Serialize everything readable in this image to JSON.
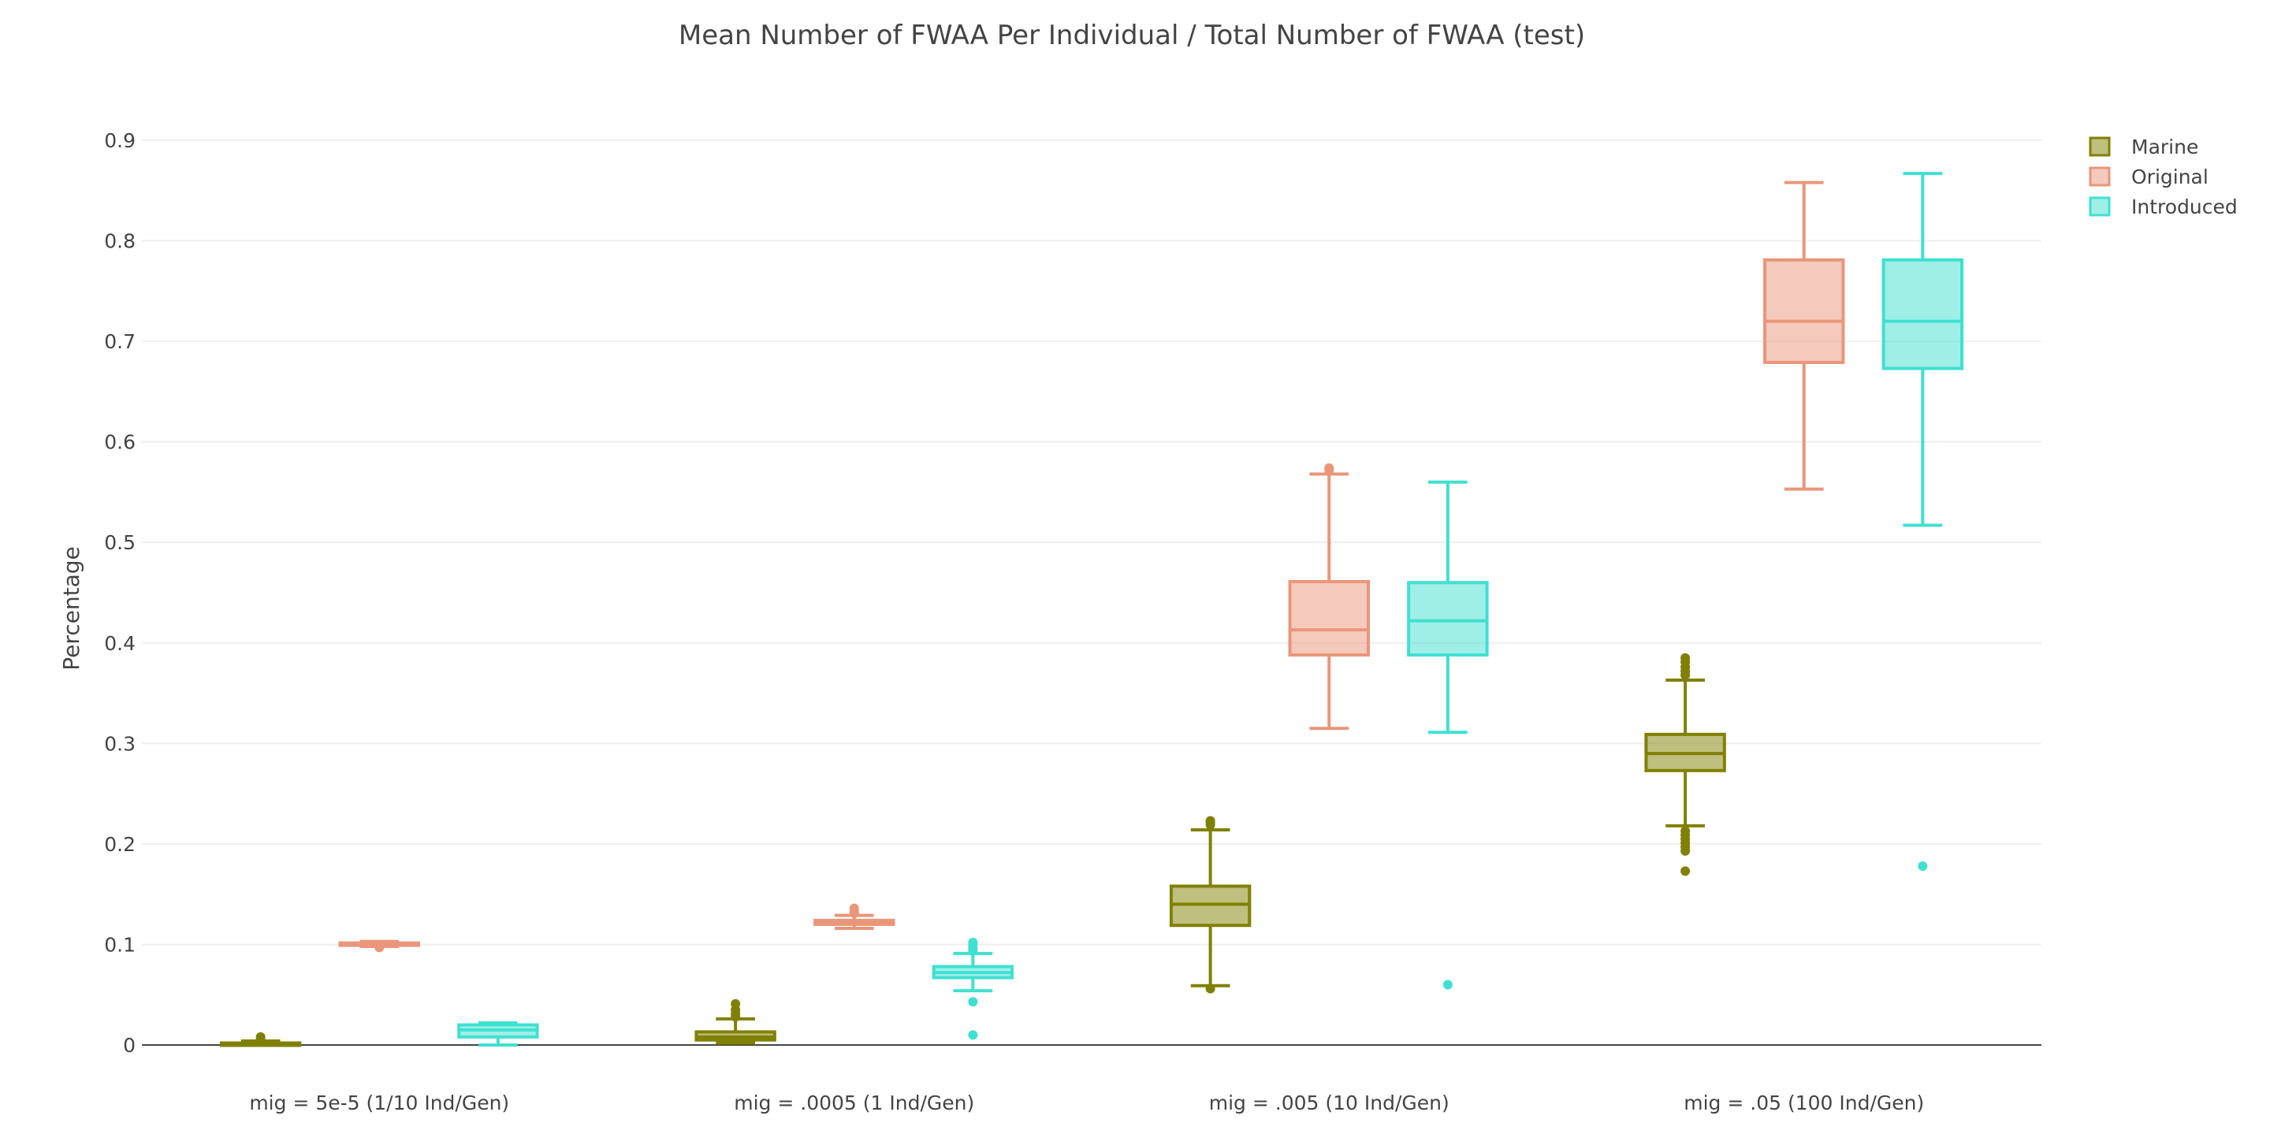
{
  "chart_data": {
    "type": "box",
    "title": "Mean Number of FWAA Per Individual / Total Number of FWAA (test)",
    "xlabel": "",
    "ylabel": "Percentage",
    "ylim": [
      0,
      0.9
    ],
    "yticks": [
      {
        "value": 0,
        "label": "0"
      },
      {
        "value": 0.1,
        "label": "0.1"
      },
      {
        "value": 0.2,
        "label": "0.2"
      },
      {
        "value": 0.3,
        "label": "0.3"
      },
      {
        "value": 0.4,
        "label": "0.4"
      },
      {
        "value": 0.5,
        "label": "0.5"
      },
      {
        "value": 0.6,
        "label": "0.6"
      },
      {
        "value": 0.7,
        "label": "0.7"
      },
      {
        "value": 0.8,
        "label": "0.8"
      },
      {
        "value": 0.9,
        "label": "0.9"
      }
    ],
    "grid": true,
    "legend_position": "top-right",
    "categories": [
      "mig = 5e-5 (1/10 Ind/Gen)",
      "mig = .0005 (1 Ind/Gen)",
      "mig = .005 (10 Ind/Gen)",
      "mig = .05 (100 Ind/Gen)"
    ],
    "series": [
      {
        "name": "Marine",
        "color": "#808000",
        "boxes": [
          {
            "lowerfence": 0.0,
            "q1": 0.0005,
            "median": 0.001,
            "q3": 0.002,
            "upperfence": 0.004,
            "outliers": [
              0.006,
              0.008
            ]
          },
          {
            "lowerfence": 0.002,
            "q1": 0.005,
            "median": 0.008,
            "q3": 0.013,
            "upperfence": 0.026,
            "outliers": [
              0.028,
              0.031,
              0.035,
              0.041
            ]
          },
          {
            "lowerfence": 0.059,
            "q1": 0.119,
            "median": 0.14,
            "q3": 0.158,
            "upperfence": 0.214,
            "outliers": [
              0.056,
              0.219,
              0.221,
              0.223
            ]
          },
          {
            "lowerfence": 0.218,
            "q1": 0.273,
            "median": 0.29,
            "q3": 0.309,
            "upperfence": 0.363,
            "outliers": [
              0.173,
              0.193,
              0.197,
              0.201,
              0.205,
              0.209,
              0.213,
              0.368,
              0.372,
              0.376,
              0.381,
              0.385
            ]
          }
        ]
      },
      {
        "name": "Original",
        "color": "#e9967a",
        "boxes": [
          {
            "lowerfence": 0.098,
            "q1": 0.0995,
            "median": 0.1005,
            "q3": 0.1015,
            "upperfence": 0.103,
            "outliers": [
              0.097
            ]
          },
          {
            "lowerfence": 0.116,
            "q1": 0.12,
            "median": 0.122,
            "q3": 0.124,
            "upperfence": 0.129,
            "outliers": [
              0.131,
              0.133,
              0.136
            ]
          },
          {
            "lowerfence": 0.315,
            "q1": 0.388,
            "median": 0.413,
            "q3": 0.461,
            "upperfence": 0.568,
            "outliers": [
              0.572,
              0.574
            ]
          },
          {
            "lowerfence": 0.553,
            "q1": 0.679,
            "median": 0.72,
            "q3": 0.781,
            "upperfence": 0.858,
            "outliers": []
          }
        ]
      },
      {
        "name": "Introduced",
        "color": "#40e0d0",
        "boxes": [
          {
            "lowerfence": 0.0,
            "q1": 0.008,
            "median": 0.015,
            "q3": 0.02,
            "upperfence": 0.022,
            "outliers": []
          },
          {
            "lowerfence": 0.054,
            "q1": 0.067,
            "median": 0.072,
            "q3": 0.078,
            "upperfence": 0.091,
            "outliers": [
              0.01,
              0.043,
              0.094,
              0.097,
              0.1,
              0.102
            ]
          },
          {
            "lowerfence": 0.311,
            "q1": 0.388,
            "median": 0.422,
            "q3": 0.46,
            "upperfence": 0.56,
            "outliers": [
              0.06
            ]
          },
          {
            "lowerfence": 0.517,
            "q1": 0.673,
            "median": 0.72,
            "q3": 0.781,
            "upperfence": 0.867,
            "outliers": [
              0.178
            ]
          }
        ]
      }
    ]
  }
}
